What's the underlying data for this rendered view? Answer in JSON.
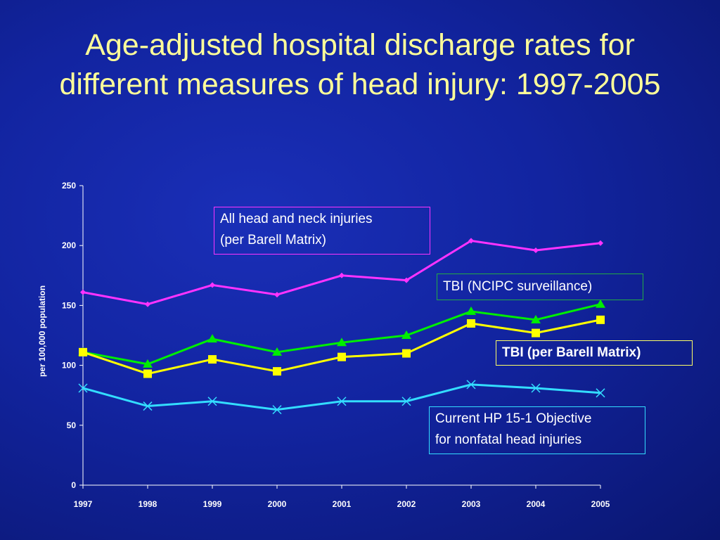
{
  "slide": {
    "title": "Age-adjusted hospital discharge rates for different measures of head injury: 1997-2005"
  },
  "annotations": {
    "all_head_neck": "All head and neck injuries\n(per Barell Matrix)",
    "tbi_ncipc": "TBI (NCIPC surveillance)",
    "tbi_barell": "TBI (per Barell Matrix)",
    "hp_objective": "Current HP 15-1 Objective\nfor nonfatal head injuries"
  },
  "colors": {
    "background": "#1224a0",
    "title": "#ffff99",
    "all_head_neck": "#ff33ff",
    "tbi_ncipc": "#00ee00",
    "tbi_barell": "#ffff00",
    "hp_objective": "#33ddff"
  },
  "chart_data": {
    "type": "line",
    "x": [
      "1997",
      "1998",
      "1999",
      "2000",
      "2001",
      "2002",
      "2003",
      "2004",
      "2005"
    ],
    "xlabel": "",
    "ylabel": "per 100,000 population",
    "ylim": [
      0,
      250
    ],
    "yticks": [
      0,
      50,
      100,
      150,
      200,
      250
    ],
    "grid": false,
    "series": [
      {
        "name": "All head and neck injuries (per Barell Matrix)",
        "color": "#ff33ff",
        "marker": "diamond",
        "values": [
          161,
          151,
          167,
          159,
          175,
          171,
          204,
          196,
          202
        ]
      },
      {
        "name": "TBI (NCIPC surveillance)",
        "color": "#00ee00",
        "marker": "triangle",
        "values": [
          111,
          101,
          122,
          111,
          119,
          125,
          145,
          138,
          151
        ]
      },
      {
        "name": "TBI (per Barell Matrix)",
        "color": "#ffff00",
        "marker": "square",
        "values": [
          111,
          93,
          105,
          95,
          107,
          110,
          135,
          127,
          138
        ]
      },
      {
        "name": "Current HP 15-1 Objective for nonfatal head injuries",
        "color": "#33ddff",
        "marker": "x",
        "values": [
          81,
          66,
          70,
          63,
          70,
          70,
          84,
          81,
          77
        ]
      }
    ]
  }
}
